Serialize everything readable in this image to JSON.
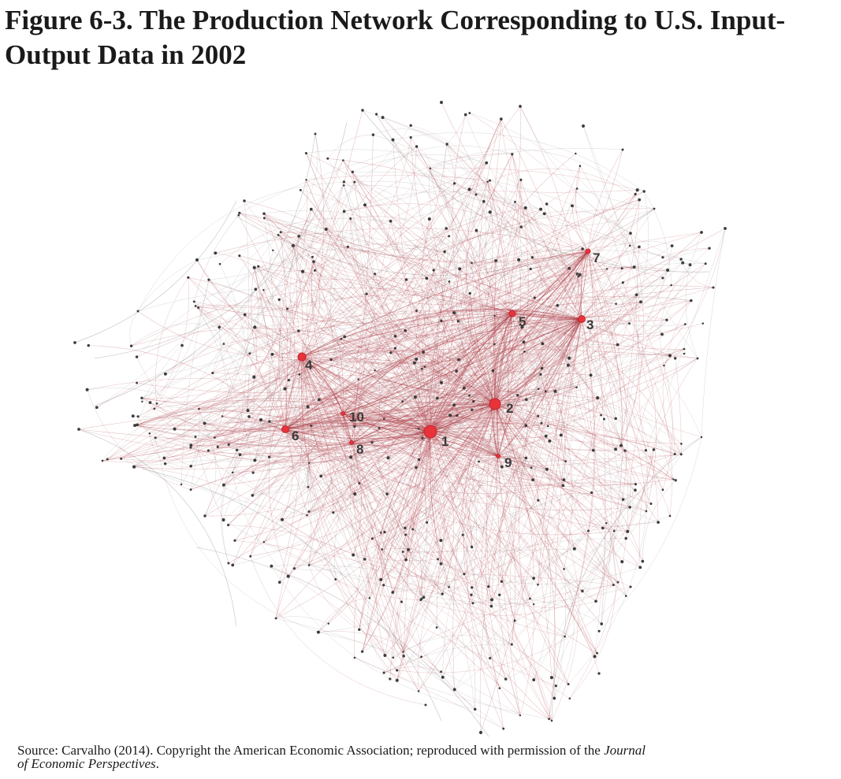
{
  "figure": {
    "title": "Figure 6-3. The Production Network Corresponding to U.S. Input-Output Data in 2002"
  },
  "network": {
    "hub_labels": [
      "1",
      "2",
      "3",
      "4",
      "5",
      "6",
      "7",
      "8",
      "9",
      "10"
    ],
    "colors": {
      "edge_red": "#a8323a",
      "edge_grey": "#8a8a8a",
      "node": "#3c3c3c",
      "hub": "#e8333a"
    }
  },
  "source": {
    "text": "Source: Carvalho (2014). Copyright the American Economic Association; reproduced with permission of the ",
    "journal_line1": "Journal",
    "journal_line2": "of Economic Perspectives",
    "end": "."
  }
}
